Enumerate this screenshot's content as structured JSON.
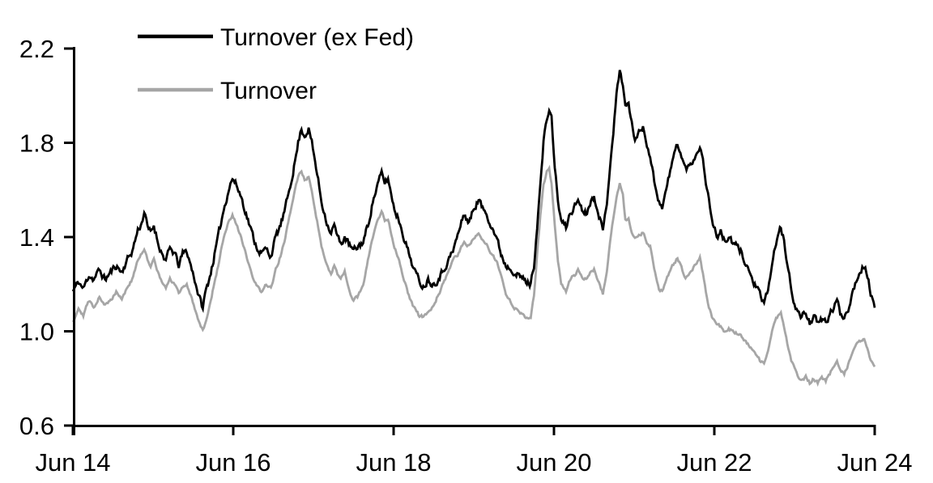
{
  "chart_data": {
    "type": "line",
    "title": "",
    "x_unit": "years since Jun 2014",
    "x_range_labels": [
      "Jun 14",
      "Jun 24"
    ],
    "xlim_years": [
      0,
      10
    ],
    "ylim": [
      0.6,
      2.2
    ],
    "grid": false,
    "legend_position": "top-left-inside",
    "axis_color": "#000000",
    "x_ticks": [
      {
        "t": 0,
        "label": "Jun 14"
      },
      {
        "t": 2,
        "label": "Jun 16"
      },
      {
        "t": 4,
        "label": "Jun 18"
      },
      {
        "t": 6,
        "label": "Jun 20"
      },
      {
        "t": 8,
        "label": "Jun 22"
      },
      {
        "t": 10,
        "label": "Jun 24"
      }
    ],
    "y_ticks": [
      {
        "v": 2.2,
        "label": "2.2"
      },
      {
        "v": 1.8,
        "label": "1.8"
      },
      {
        "v": 1.4,
        "label": "1.4"
      },
      {
        "v": 1.0,
        "label": "1.0"
      },
      {
        "v": 0.6,
        "label": "0.6"
      }
    ],
    "x": [
      0.0,
      0.07,
      0.13,
      0.2,
      0.26,
      0.33,
      0.4,
      0.47,
      0.54,
      0.61,
      0.67,
      0.74,
      0.81,
      0.86,
      0.89,
      0.93,
      0.97,
      1.01,
      1.06,
      1.11,
      1.16,
      1.21,
      1.27,
      1.32,
      1.37,
      1.42,
      1.47,
      1.52,
      1.57,
      1.62,
      1.65,
      1.72,
      1.8,
      1.87,
      1.94,
      1.99,
      2.04,
      2.1,
      2.16,
      2.23,
      2.29,
      2.35,
      2.41,
      2.47,
      2.53,
      2.59,
      2.65,
      2.71,
      2.77,
      2.81,
      2.85,
      2.89,
      2.94,
      2.98,
      3.02,
      3.06,
      3.1,
      3.14,
      3.18,
      3.22,
      3.26,
      3.3,
      3.34,
      3.39,
      3.44,
      3.5,
      3.56,
      3.62,
      3.68,
      3.74,
      3.8,
      3.85,
      3.89,
      3.93,
      3.97,
      4.01,
      4.07,
      4.13,
      4.19,
      4.25,
      4.31,
      4.37,
      4.43,
      4.49,
      4.55,
      4.62,
      4.68,
      4.74,
      4.81,
      4.88,
      4.94,
      5.0,
      5.06,
      5.11,
      5.16,
      5.22,
      5.28,
      5.34,
      5.4,
      5.47,
      5.53,
      5.59,
      5.65,
      5.71,
      5.75,
      5.79,
      5.83,
      5.87,
      5.91,
      5.94,
      5.97,
      6.01,
      6.05,
      6.09,
      6.15,
      6.2,
      6.26,
      6.3,
      6.35,
      6.4,
      6.45,
      6.5,
      6.55,
      6.61,
      6.66,
      6.7,
      6.74,
      6.78,
      6.82,
      6.86,
      6.89,
      6.93,
      6.97,
      7.01,
      7.06,
      7.11,
      7.16,
      7.2,
      7.25,
      7.31,
      7.35,
      7.4,
      7.45,
      7.5,
      7.54,
      7.59,
      7.64,
      7.69,
      7.74,
      7.78,
      7.82,
      7.87,
      7.92,
      7.97,
      8.03,
      8.08,
      8.13,
      8.18,
      8.23,
      8.28,
      8.33,
      8.38,
      8.43,
      8.48,
      8.53,
      8.58,
      8.62,
      8.67,
      8.72,
      8.77,
      8.83,
      8.87,
      8.91,
      8.96,
      9.0,
      9.04,
      9.09,
      9.14,
      9.19,
      9.24,
      9.29,
      9.34,
      9.39,
      9.44,
      9.49,
      9.53,
      9.57,
      9.62,
      9.67,
      9.72,
      9.77,
      9.82,
      9.87,
      9.91,
      9.95,
      10.0
    ],
    "series": [
      {
        "name": "Turnover (ex Fed)",
        "color": "#000000",
        "values": [
          1.17,
          1.21,
          1.18,
          1.24,
          1.22,
          1.26,
          1.22,
          1.25,
          1.28,
          1.25,
          1.3,
          1.34,
          1.43,
          1.46,
          1.51,
          1.44,
          1.42,
          1.45,
          1.38,
          1.33,
          1.3,
          1.35,
          1.33,
          1.28,
          1.33,
          1.34,
          1.28,
          1.22,
          1.15,
          1.1,
          1.16,
          1.25,
          1.38,
          1.5,
          1.6,
          1.65,
          1.62,
          1.57,
          1.5,
          1.42,
          1.36,
          1.33,
          1.35,
          1.32,
          1.4,
          1.45,
          1.52,
          1.62,
          1.72,
          1.8,
          1.86,
          1.83,
          1.86,
          1.8,
          1.72,
          1.64,
          1.55,
          1.5,
          1.45,
          1.42,
          1.45,
          1.4,
          1.37,
          1.4,
          1.37,
          1.34,
          1.36,
          1.38,
          1.45,
          1.55,
          1.62,
          1.67,
          1.63,
          1.65,
          1.58,
          1.52,
          1.47,
          1.4,
          1.33,
          1.27,
          1.22,
          1.19,
          1.22,
          1.2,
          1.22,
          1.26,
          1.3,
          1.34,
          1.42,
          1.5,
          1.46,
          1.52,
          1.56,
          1.52,
          1.5,
          1.45,
          1.4,
          1.33,
          1.28,
          1.27,
          1.24,
          1.23,
          1.21,
          1.2,
          1.28,
          1.45,
          1.62,
          1.8,
          1.9,
          1.94,
          1.9,
          1.7,
          1.55,
          1.47,
          1.44,
          1.5,
          1.53,
          1.56,
          1.52,
          1.5,
          1.55,
          1.57,
          1.52,
          1.42,
          1.55,
          1.71,
          1.85,
          2.0,
          2.11,
          2.05,
          1.95,
          1.97,
          1.88,
          1.82,
          1.84,
          1.87,
          1.8,
          1.74,
          1.64,
          1.55,
          1.53,
          1.6,
          1.68,
          1.75,
          1.8,
          1.74,
          1.69,
          1.7,
          1.73,
          1.76,
          1.79,
          1.7,
          1.58,
          1.48,
          1.4,
          1.42,
          1.38,
          1.4,
          1.37,
          1.36,
          1.34,
          1.3,
          1.26,
          1.21,
          1.19,
          1.14,
          1.11,
          1.18,
          1.28,
          1.38,
          1.44,
          1.38,
          1.28,
          1.18,
          1.12,
          1.08,
          1.06,
          1.08,
          1.04,
          1.06,
          1.03,
          1.05,
          1.04,
          1.07,
          1.1,
          1.13,
          1.08,
          1.06,
          1.1,
          1.16,
          1.22,
          1.26,
          1.28,
          1.24,
          1.16,
          1.1
        ]
      },
      {
        "name": "Turnover",
        "color": "#a6a6a6",
        "values": [
          1.04,
          1.1,
          1.07,
          1.13,
          1.1,
          1.15,
          1.11,
          1.13,
          1.17,
          1.14,
          1.18,
          1.22,
          1.3,
          1.33,
          1.35,
          1.3,
          1.28,
          1.31,
          1.25,
          1.21,
          1.18,
          1.22,
          1.2,
          1.16,
          1.19,
          1.2,
          1.15,
          1.1,
          1.04,
          1.01,
          1.03,
          1.13,
          1.26,
          1.38,
          1.46,
          1.49,
          1.45,
          1.4,
          1.32,
          1.24,
          1.19,
          1.17,
          1.2,
          1.18,
          1.26,
          1.32,
          1.4,
          1.5,
          1.6,
          1.66,
          1.68,
          1.64,
          1.66,
          1.6,
          1.52,
          1.44,
          1.36,
          1.31,
          1.27,
          1.25,
          1.28,
          1.24,
          1.22,
          1.25,
          1.18,
          1.13,
          1.15,
          1.2,
          1.3,
          1.4,
          1.47,
          1.51,
          1.47,
          1.48,
          1.42,
          1.36,
          1.3,
          1.22,
          1.15,
          1.1,
          1.07,
          1.06,
          1.08,
          1.1,
          1.15,
          1.2,
          1.25,
          1.3,
          1.33,
          1.38,
          1.36,
          1.4,
          1.42,
          1.39,
          1.37,
          1.33,
          1.3,
          1.24,
          1.15,
          1.12,
          1.09,
          1.08,
          1.06,
          1.05,
          1.15,
          1.32,
          1.5,
          1.62,
          1.68,
          1.69,
          1.63,
          1.45,
          1.3,
          1.2,
          1.17,
          1.22,
          1.24,
          1.26,
          1.23,
          1.22,
          1.25,
          1.26,
          1.22,
          1.16,
          1.25,
          1.38,
          1.48,
          1.57,
          1.63,
          1.58,
          1.47,
          1.48,
          1.42,
          1.4,
          1.41,
          1.42,
          1.38,
          1.36,
          1.26,
          1.18,
          1.17,
          1.22,
          1.26,
          1.29,
          1.31,
          1.27,
          1.23,
          1.24,
          1.27,
          1.29,
          1.31,
          1.22,
          1.12,
          1.06,
          1.03,
          1.02,
          1.0,
          1.01,
          1.0,
          0.99,
          0.98,
          0.96,
          0.94,
          0.92,
          0.9,
          0.87,
          0.86,
          0.92,
          1.0,
          1.05,
          1.08,
          1.02,
          0.95,
          0.88,
          0.84,
          0.81,
          0.79,
          0.81,
          0.78,
          0.8,
          0.78,
          0.8,
          0.79,
          0.82,
          0.85,
          0.87,
          0.83,
          0.82,
          0.86,
          0.91,
          0.94,
          0.96,
          0.97,
          0.93,
          0.88,
          0.85
        ]
      }
    ]
  }
}
